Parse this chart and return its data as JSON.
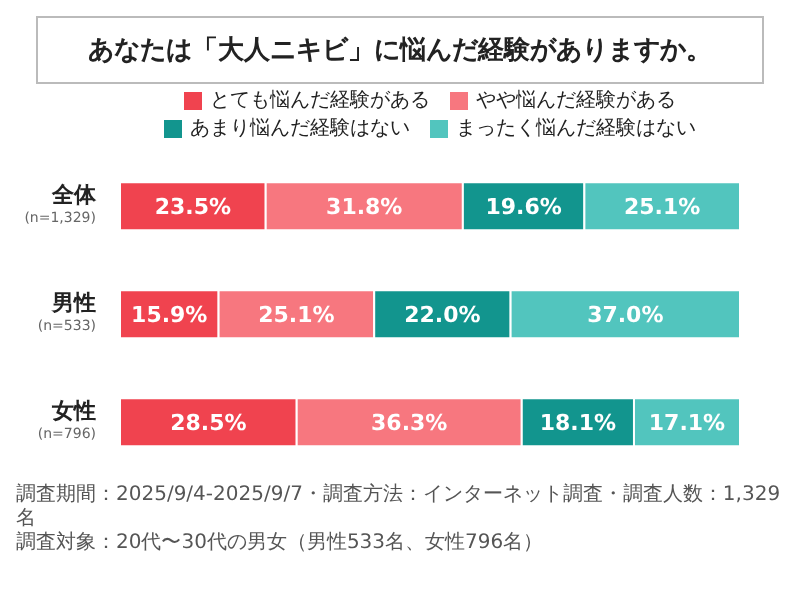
{
  "chart_data": {
    "type": "bar",
    "orientation": "horizontal",
    "stacked": true,
    "title": "あなたは「大人ニキビ」に悩んだ経験がありますか。",
    "categories": [
      "全体\n(n=1,329)",
      "男性\n(n=533)",
      "女性\n(n=796)"
    ],
    "series": [
      {
        "name": "とても悩んだ経験がある",
        "color": "#f0434f",
        "values": [
          23.5,
          15.9,
          28.5
        ],
        "value_labels": [
          "23.5%",
          "15.9%",
          "28.5%"
        ]
      },
      {
        "name": "やや悩んだ経験がある",
        "color": "#f7777f",
        "values": [
          31.8,
          25.1,
          36.3
        ],
        "value_labels": [
          "31.8%",
          "25.1%",
          "36.3%"
        ]
      },
      {
        "name": "あまり悩んだ経験はない",
        "color": "#12958e",
        "values": [
          19.6,
          22.0,
          18.1
        ],
        "value_labels": [
          "19.6%",
          "22.0%",
          "18.1%"
        ]
      },
      {
        "name": "まったく悩んだ経験はない",
        "color": "#52c5be",
        "values": [
          25.1,
          37.0,
          17.1
        ],
        "value_labels": [
          "25.1%",
          "37.0%",
          "17.1%"
        ]
      }
    ],
    "legend": "top",
    "grid": false,
    "annotations": [
      "調査期間：2025/9/4-2025/9/7・調査方法：インターネット調査・調査人数：1,329名",
      "調査対象：20代〜30代の男女（男性533名、女性796名）"
    ]
  }
}
